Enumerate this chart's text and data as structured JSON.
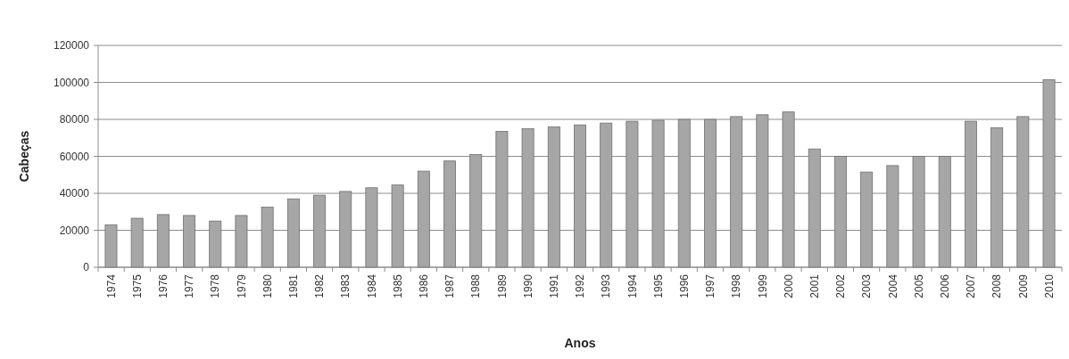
{
  "chart_data": {
    "type": "bar",
    "xlabel": "Anos",
    "ylabel": "Cabeças",
    "categories": [
      "1974",
      "1975",
      "1976",
      "1977",
      "1978",
      "1979",
      "1980",
      "1981",
      "1982",
      "1983",
      "1984",
      "1985",
      "1986",
      "1987",
      "1988",
      "1989",
      "1990",
      "1991",
      "1992",
      "1993",
      "1994",
      "1995",
      "1996",
      "1997",
      "1998",
      "1999",
      "2000",
      "2001",
      "2002",
      "2003",
      "2004",
      "2005",
      "2006",
      "2007",
      "2008",
      "2009",
      "2010"
    ],
    "values": [
      23000,
      26500,
      28500,
      28000,
      25000,
      28000,
      32500,
      37000,
      39000,
      41000,
      43000,
      44500,
      52000,
      57500,
      61000,
      73500,
      75000,
      76000,
      77000,
      78000,
      79000,
      79500,
      80000,
      80000,
      81500,
      82500,
      84000,
      64000,
      60000,
      51500,
      55000,
      60000,
      60000,
      79000,
      75500,
      81500,
      101500
    ],
    "color": "#a6a6a6",
    "ylim": [
      0,
      120000
    ],
    "yticks": [
      0,
      20000,
      40000,
      60000,
      80000,
      100000,
      120000
    ],
    "grid": "y"
  }
}
